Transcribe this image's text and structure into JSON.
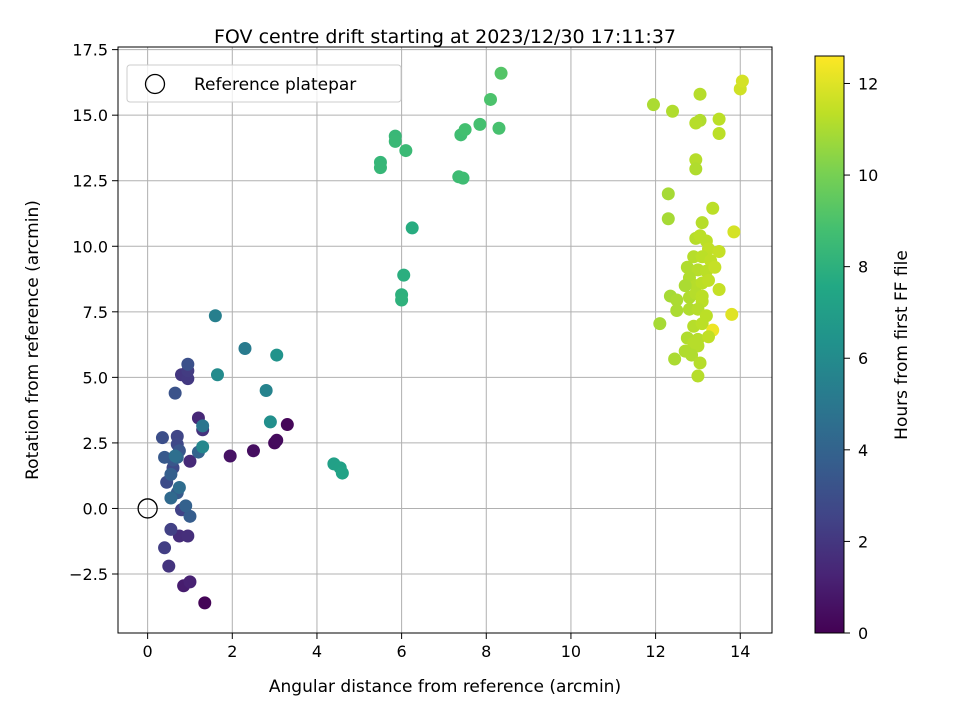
{
  "chart_data": {
    "type": "scatter",
    "title": "FOV centre drift starting at 2023/12/30 17:11:37",
    "xlabel": "Angular distance from reference (arcmin)",
    "ylabel": "Rotation from reference (arcmin)",
    "xlim": [
      -0.7,
      14.75
    ],
    "ylim": [
      -4.75,
      17.6
    ],
    "xticks": [
      0,
      2,
      4,
      6,
      8,
      10,
      12,
      14
    ],
    "xtick_labels": [
      "0",
      "2",
      "4",
      "6",
      "8",
      "10",
      "12",
      "14"
    ],
    "yticks": [
      -2.5,
      0.0,
      2.5,
      5.0,
      7.5,
      10.0,
      12.5,
      15.0,
      17.5
    ],
    "ytick_labels": [
      "−2.5",
      "0.0",
      "2.5",
      "5.0",
      "7.5",
      "10.0",
      "12.5",
      "15.0",
      "17.5"
    ],
    "grid": true,
    "legend": {
      "placement": "top-left",
      "entries": [
        "Reference platepar"
      ]
    },
    "reference_point": {
      "x": 0,
      "y": 0,
      "marker": "open-circle",
      "color": "#000000"
    },
    "colorbar": {
      "label": "Hours from first FF file",
      "range": [
        0,
        12.6
      ],
      "ticks": [
        0,
        2,
        4,
        6,
        8,
        10,
        12
      ],
      "tick_labels": [
        "0",
        "2",
        "4",
        "6",
        "8",
        "10",
        "12"
      ],
      "colormap": "viridis"
    },
    "points": [
      {
        "x": 1.35,
        "y": -3.6,
        "c": 0.1
      },
      {
        "x": 3.3,
        "y": 3.2,
        "c": 0.2
      },
      {
        "x": 3.0,
        "y": 2.5,
        "c": 0.3
      },
      {
        "x": 3.05,
        "y": 2.6,
        "c": 0.35
      },
      {
        "x": 2.5,
        "y": 2.2,
        "c": 0.45
      },
      {
        "x": 1.95,
        "y": 2.0,
        "c": 0.6
      },
      {
        "x": 0.85,
        "y": -2.95,
        "c": 1.0
      },
      {
        "x": 1.0,
        "y": -2.8,
        "c": 1.2
      },
      {
        "x": 1.2,
        "y": 3.45,
        "c": 1.4
      },
      {
        "x": 1.0,
        "y": 1.8,
        "c": 1.5
      },
      {
        "x": 0.75,
        "y": -1.05,
        "c": 1.6
      },
      {
        "x": 0.95,
        "y": -1.05,
        "c": 1.7
      },
      {
        "x": 1.3,
        "y": 3.0,
        "c": 1.8
      },
      {
        "x": 0.5,
        "y": -2.2,
        "c": 1.9
      },
      {
        "x": 0.8,
        "y": 5.1,
        "c": 2.0
      },
      {
        "x": 0.95,
        "y": 4.95,
        "c": 2.1
      },
      {
        "x": 0.95,
        "y": 5.25,
        "c": 2.2
      },
      {
        "x": 0.4,
        "y": -1.5,
        "c": 2.3
      },
      {
        "x": 0.55,
        "y": -0.8,
        "c": 2.4
      },
      {
        "x": 0.8,
        "y": -0.05,
        "c": 2.5
      },
      {
        "x": 0.7,
        "y": 2.75,
        "c": 2.6
      },
      {
        "x": 0.7,
        "y": 2.45,
        "c": 2.7
      },
      {
        "x": 0.6,
        "y": 1.55,
        "c": 2.8
      },
      {
        "x": 0.45,
        "y": 1.0,
        "c": 2.9
      },
      {
        "x": 0.35,
        "y": 2.7,
        "c": 3.0
      },
      {
        "x": 0.95,
        "y": 5.5,
        "c": 3.1
      },
      {
        "x": 0.65,
        "y": 4.4,
        "c": 3.2
      },
      {
        "x": 0.75,
        "y": 2.2,
        "c": 3.3
      },
      {
        "x": 0.6,
        "y": 1.85,
        "c": 3.4
      },
      {
        "x": 0.4,
        "y": 1.95,
        "c": 3.5
      },
      {
        "x": 0.7,
        "y": 0.6,
        "c": 3.6
      },
      {
        "x": 1.0,
        "y": -0.3,
        "c": 3.7
      },
      {
        "x": 0.55,
        "y": 1.3,
        "c": 3.8
      },
      {
        "x": 0.9,
        "y": 0.1,
        "c": 3.9
      },
      {
        "x": 1.2,
        "y": 2.15,
        "c": 4.0
      },
      {
        "x": 0.7,
        "y": 1.95,
        "c": 4.1
      },
      {
        "x": 0.55,
        "y": 0.4,
        "c": 4.3
      },
      {
        "x": 0.75,
        "y": 0.8,
        "c": 4.5
      },
      {
        "x": 0.65,
        "y": 2.0,
        "c": 4.6
      },
      {
        "x": 1.3,
        "y": 3.15,
        "c": 4.9
      },
      {
        "x": 2.3,
        "y": 6.1,
        "c": 5.2
      },
      {
        "x": 1.6,
        "y": 7.35,
        "c": 5.4
      },
      {
        "x": 2.8,
        "y": 4.5,
        "c": 5.6
      },
      {
        "x": 1.3,
        "y": 2.35,
        "c": 5.8
      },
      {
        "x": 1.65,
        "y": 5.1,
        "c": 6.0
      },
      {
        "x": 2.9,
        "y": 3.3,
        "c": 6.2
      },
      {
        "x": 3.05,
        "y": 5.85,
        "c": 6.4
      },
      {
        "x": 4.4,
        "y": 1.7,
        "c": 7.1
      },
      {
        "x": 4.55,
        "y": 1.55,
        "c": 7.2
      },
      {
        "x": 4.6,
        "y": 1.35,
        "c": 7.3
      },
      {
        "x": 6.25,
        "y": 10.7,
        "c": 7.8
      },
      {
        "x": 6.05,
        "y": 8.9,
        "c": 7.9
      },
      {
        "x": 6.0,
        "y": 8.15,
        "c": 8.0
      },
      {
        "x": 6.0,
        "y": 7.95,
        "c": 8.05
      },
      {
        "x": 5.5,
        "y": 13.2,
        "c": 8.3
      },
      {
        "x": 5.5,
        "y": 13.0,
        "c": 8.35
      },
      {
        "x": 5.85,
        "y": 14.2,
        "c": 8.4
      },
      {
        "x": 5.85,
        "y": 14.0,
        "c": 8.45
      },
      {
        "x": 6.1,
        "y": 13.65,
        "c": 8.5
      },
      {
        "x": 7.35,
        "y": 12.65,
        "c": 8.6
      },
      {
        "x": 7.45,
        "y": 12.6,
        "c": 8.65
      },
      {
        "x": 7.4,
        "y": 14.25,
        "c": 8.7
      },
      {
        "x": 7.5,
        "y": 14.45,
        "c": 8.8
      },
      {
        "x": 7.85,
        "y": 14.65,
        "c": 8.85
      },
      {
        "x": 8.3,
        "y": 14.5,
        "c": 8.9
      },
      {
        "x": 8.1,
        "y": 15.6,
        "c": 9.0
      },
      {
        "x": 8.35,
        "y": 16.6,
        "c": 9.2
      },
      {
        "x": 11.95,
        "y": 15.4,
        "c": 11.0
      },
      {
        "x": 12.4,
        "y": 15.15,
        "c": 11.1
      },
      {
        "x": 13.05,
        "y": 15.8,
        "c": 11.2
      },
      {
        "x": 13.05,
        "y": 14.8,
        "c": 11.1
      },
      {
        "x": 12.95,
        "y": 14.7,
        "c": 11.2
      },
      {
        "x": 13.5,
        "y": 14.85,
        "c": 11.3
      },
      {
        "x": 13.5,
        "y": 14.3,
        "c": 11.3
      },
      {
        "x": 14.0,
        "y": 16.0,
        "c": 11.7
      },
      {
        "x": 14.05,
        "y": 16.3,
        "c": 11.8
      },
      {
        "x": 12.95,
        "y": 13.3,
        "c": 11.2
      },
      {
        "x": 12.95,
        "y": 12.95,
        "c": 11.1
      },
      {
        "x": 12.3,
        "y": 12.0,
        "c": 10.9
      },
      {
        "x": 12.3,
        "y": 11.05,
        "c": 10.9
      },
      {
        "x": 13.35,
        "y": 11.45,
        "c": 11.3
      },
      {
        "x": 13.85,
        "y": 10.55,
        "c": 11.8
      },
      {
        "x": 12.95,
        "y": 10.3,
        "c": 11.2
      },
      {
        "x": 13.05,
        "y": 10.4,
        "c": 11.3
      },
      {
        "x": 13.1,
        "y": 10.9,
        "c": 11.2
      },
      {
        "x": 13.2,
        "y": 10.2,
        "c": 11.3
      },
      {
        "x": 13.25,
        "y": 9.9,
        "c": 11.4
      },
      {
        "x": 12.9,
        "y": 9.6,
        "c": 11.2
      },
      {
        "x": 13.1,
        "y": 9.6,
        "c": 11.3
      },
      {
        "x": 13.3,
        "y": 9.45,
        "c": 11.4
      },
      {
        "x": 13.5,
        "y": 9.8,
        "c": 11.5
      },
      {
        "x": 12.75,
        "y": 9.2,
        "c": 11.1
      },
      {
        "x": 13.0,
        "y": 9.1,
        "c": 11.2
      },
      {
        "x": 13.2,
        "y": 9.05,
        "c": 11.3
      },
      {
        "x": 13.4,
        "y": 9.2,
        "c": 11.5
      },
      {
        "x": 12.8,
        "y": 8.8,
        "c": 11.1
      },
      {
        "x": 12.95,
        "y": 8.5,
        "c": 11.2
      },
      {
        "x": 12.7,
        "y": 8.5,
        "c": 11.0
      },
      {
        "x": 13.1,
        "y": 8.6,
        "c": 11.3
      },
      {
        "x": 13.25,
        "y": 8.7,
        "c": 11.4
      },
      {
        "x": 12.35,
        "y": 8.1,
        "c": 10.9
      },
      {
        "x": 12.5,
        "y": 7.95,
        "c": 11.0
      },
      {
        "x": 12.8,
        "y": 8.05,
        "c": 11.1
      },
      {
        "x": 12.95,
        "y": 8.2,
        "c": 11.2
      },
      {
        "x": 13.1,
        "y": 8.1,
        "c": 11.3
      },
      {
        "x": 13.1,
        "y": 7.9,
        "c": 11.3
      },
      {
        "x": 13.5,
        "y": 8.35,
        "c": 11.5
      },
      {
        "x": 12.5,
        "y": 7.55,
        "c": 11.0
      },
      {
        "x": 12.8,
        "y": 7.6,
        "c": 11.1
      },
      {
        "x": 13.0,
        "y": 7.6,
        "c": 11.2
      },
      {
        "x": 13.2,
        "y": 7.35,
        "c": 11.3
      },
      {
        "x": 13.8,
        "y": 7.4,
        "c": 12.0
      },
      {
        "x": 12.1,
        "y": 7.05,
        "c": 10.9
      },
      {
        "x": 12.9,
        "y": 6.95,
        "c": 11.2
      },
      {
        "x": 13.1,
        "y": 7.05,
        "c": 11.3
      },
      {
        "x": 13.35,
        "y": 6.8,
        "c": 12.3
      },
      {
        "x": 12.75,
        "y": 6.5,
        "c": 11.1
      },
      {
        "x": 13.0,
        "y": 6.45,
        "c": 11.2
      },
      {
        "x": 13.25,
        "y": 6.55,
        "c": 11.4
      },
      {
        "x": 13.0,
        "y": 6.2,
        "c": 11.2
      },
      {
        "x": 12.9,
        "y": 6.3,
        "c": 11.2
      },
      {
        "x": 12.7,
        "y": 6.0,
        "c": 11.1
      },
      {
        "x": 12.85,
        "y": 5.85,
        "c": 11.1
      },
      {
        "x": 13.05,
        "y": 5.55,
        "c": 11.2
      },
      {
        "x": 12.45,
        "y": 5.7,
        "c": 11.0
      },
      {
        "x": 13.0,
        "y": 5.05,
        "c": 11.2
      }
    ]
  }
}
